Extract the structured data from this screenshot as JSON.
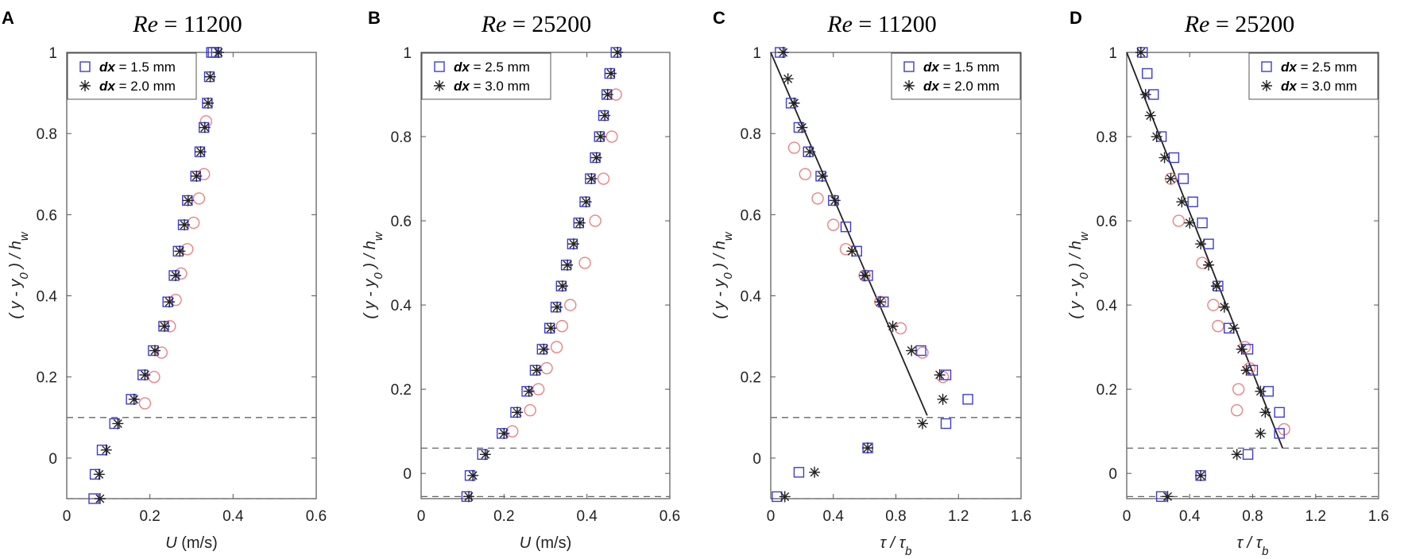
{
  "figure": {
    "panels": [
      "A",
      "B",
      "C",
      "D"
    ]
  },
  "colors": {
    "series1": "#3b3bdc",
    "series2": "#222222",
    "series3": "#f08080",
    "fit_line": "#222222",
    "reference": "#666666"
  },
  "chart_data": [
    {
      "panel": "A",
      "type": "scatter",
      "title_var": "Re",
      "title_value": "= 11200",
      "xlabel_var": "U",
      "xlabel_unit": "(m/s)",
      "ylabel": "( y - y0 ) / hw",
      "xlim": [
        0,
        0.6
      ],
      "ylim": [
        -0.1,
        1.0
      ],
      "xticks": [
        "0",
        "0.2",
        "0.4",
        "0.6"
      ],
      "xtick_values": [
        0,
        0.2,
        0.4,
        0.6
      ],
      "yticks": [
        "0",
        "0.2",
        "0.4",
        "0.6",
        "0.8",
        "1"
      ],
      "ytick_values": [
        0,
        0.2,
        0.4,
        0.6,
        0.8,
        1
      ],
      "legend_position": "top-left",
      "reference_lines": [
        0.1,
        -0.1
      ],
      "series": [
        {
          "name": "dx = 1.5 mm",
          "var": "dx",
          "label": "= 1.5 mm",
          "marker": "square",
          "x": [
            0.065,
            0.068,
            0.085,
            0.115,
            0.155,
            0.183,
            0.208,
            0.233,
            0.243,
            0.258,
            0.268,
            0.28,
            0.29,
            0.31,
            0.32,
            0.33,
            0.338,
            0.343,
            0.348,
            0.352,
            0.36
          ],
          "y": [
            -0.1,
            -0.04,
            0.02,
            0.085,
            0.145,
            0.205,
            0.265,
            0.325,
            0.385,
            0.45,
            0.51,
            0.575,
            0.635,
            0.695,
            0.755,
            0.815,
            0.875,
            0.94,
            1.0,
            1.0,
            1.0
          ]
        },
        {
          "name": "dx = 2.0 mm",
          "var": "dx",
          "label": "= 2.0 mm",
          "marker": "asterisk",
          "x": [
            0.08,
            0.078,
            0.095,
            0.123,
            0.162,
            0.188,
            0.212,
            0.235,
            0.247,
            0.262,
            0.272,
            0.283,
            0.292,
            0.312,
            0.322,
            0.332,
            0.34,
            0.345,
            0.365
          ],
          "y": [
            -0.1,
            -0.04,
            0.02,
            0.085,
            0.145,
            0.205,
            0.265,
            0.325,
            0.385,
            0.45,
            0.51,
            0.575,
            0.635,
            0.695,
            0.755,
            0.815,
            0.875,
            0.94,
            1.0
          ]
        },
        {
          "name": "open-circle series",
          "marker": "circle",
          "x": [
            0.188,
            0.21,
            0.228,
            0.248,
            0.262,
            0.275,
            0.29,
            0.305,
            0.318,
            0.33,
            0.335
          ],
          "y": [
            0.135,
            0.2,
            0.26,
            0.325,
            0.39,
            0.455,
            0.515,
            0.58,
            0.64,
            0.7,
            0.83
          ]
        }
      ]
    },
    {
      "panel": "B",
      "type": "scatter",
      "title_var": "Re",
      "title_value": "= 25200",
      "xlabel_var": "U",
      "xlabel_unit": "(m/s)",
      "ylabel": "( y - y0 ) / hw",
      "xlim": [
        0,
        0.6
      ],
      "ylim": [
        -0.06,
        1.0
      ],
      "xticks": [
        "0",
        "0.2",
        "0.4",
        "0.6"
      ],
      "xtick_values": [
        0,
        0.2,
        0.4,
        0.6
      ],
      "yticks": [
        "0",
        "0.2",
        "0.4",
        "0.6",
        "0.8",
        "1"
      ],
      "ytick_values": [
        0,
        0.2,
        0.4,
        0.6,
        0.8,
        1
      ],
      "legend_position": "top-left",
      "reference_lines": [
        0.06,
        -0.055
      ],
      "series": [
        {
          "name": "dx = 2.5 mm",
          "var": "dx",
          "label": "= 2.5 mm",
          "marker": "square",
          "x": [
            0.11,
            0.118,
            0.148,
            0.195,
            0.228,
            0.255,
            0.275,
            0.292,
            0.31,
            0.325,
            0.338,
            0.35,
            0.365,
            0.38,
            0.395,
            0.408,
            0.42,
            0.43,
            0.44,
            0.448,
            0.455,
            0.47
          ],
          "y": [
            -0.055,
            -0.005,
            0.045,
            0.095,
            0.145,
            0.195,
            0.245,
            0.295,
            0.345,
            0.395,
            0.445,
            0.495,
            0.545,
            0.595,
            0.645,
            0.7,
            0.75,
            0.8,
            0.85,
            0.9,
            0.95,
            1.0
          ]
        },
        {
          "name": "dx = 3.0 mm",
          "var": "dx",
          "label": "= 3.0 mm",
          "marker": "asterisk",
          "x": [
            0.115,
            0.125,
            0.155,
            0.2,
            0.232,
            0.26,
            0.279,
            0.296,
            0.313,
            0.328,
            0.341,
            0.353,
            0.368,
            0.383,
            0.398,
            0.411,
            0.423,
            0.433,
            0.443,
            0.45,
            0.458,
            0.474
          ],
          "y": [
            -0.055,
            -0.005,
            0.045,
            0.095,
            0.145,
            0.195,
            0.245,
            0.295,
            0.345,
            0.395,
            0.445,
            0.495,
            0.545,
            0.595,
            0.645,
            0.7,
            0.75,
            0.8,
            0.85,
            0.9,
            0.95,
            1.0
          ]
        },
        {
          "name": "open-circle series",
          "marker": "circle",
          "x": [
            0.22,
            0.263,
            0.283,
            0.303,
            0.327,
            0.34,
            0.36,
            0.395,
            0.42,
            0.44,
            0.46,
            0.47
          ],
          "y": [
            0.1,
            0.15,
            0.2,
            0.25,
            0.3,
            0.35,
            0.4,
            0.5,
            0.6,
            0.7,
            0.8,
            0.9
          ]
        }
      ]
    },
    {
      "panel": "C",
      "type": "scatter",
      "title_var": "Re",
      "title_value": "= 11200",
      "xlabel_var": "τ / τb",
      "xlabel_unit": "",
      "ylabel": "( y - y0 ) / hw",
      "xlim": [
        0,
        1.6
      ],
      "ylim": [
        -0.1,
        1.0
      ],
      "xticks": [
        "0",
        "0.4",
        "0.8",
        "1.2",
        "1.6"
      ],
      "xtick_values": [
        0,
        0.4,
        0.8,
        1.2,
        1.6
      ],
      "yticks": [
        "0",
        "0.2",
        "0.4",
        "0.6",
        "0.8",
        "1"
      ],
      "ytick_values": [
        0,
        0.2,
        0.4,
        0.6,
        0.8,
        1
      ],
      "legend_position": "top-right",
      "reference_lines": [
        0.1,
        -0.1
      ],
      "fit_line": {
        "x": [
          0.0,
          1.0
        ],
        "y": [
          1.0,
          0.105
        ]
      },
      "series": [
        {
          "name": "dx = 1.5 mm",
          "var": "dx",
          "label": "= 1.5 mm",
          "marker": "square",
          "x": [
            0.04,
            0.18,
            0.62,
            1.12,
            1.26,
            1.12,
            0.96,
            0.72,
            0.62,
            0.55,
            0.48,
            0.4,
            0.32,
            0.24,
            0.18,
            0.13,
            0.06
          ],
          "y": [
            -0.095,
            -0.035,
            0.025,
            0.085,
            0.145,
            0.205,
            0.265,
            0.385,
            0.45,
            0.51,
            0.57,
            0.635,
            0.695,
            0.755,
            0.815,
            0.875,
            1.0
          ]
        },
        {
          "name": "dx = 2.0 mm",
          "var": "dx",
          "label": "= 2.0 mm",
          "marker": "asterisk",
          "x": [
            0.09,
            0.28,
            0.62,
            0.97,
            1.1,
            1.08,
            0.9,
            0.78,
            0.7,
            0.6,
            0.52,
            0.41,
            0.33,
            0.25,
            0.2,
            0.15,
            0.11,
            0.08
          ],
          "y": [
            -0.095,
            -0.035,
            0.025,
            0.085,
            0.145,
            0.205,
            0.265,
            0.325,
            0.385,
            0.45,
            0.51,
            0.635,
            0.695,
            0.755,
            0.815,
            0.875,
            0.935,
            1.0
          ]
        },
        {
          "name": "open-circle series",
          "marker": "circle",
          "x": [
            1.1,
            0.97,
            0.83,
            0.7,
            0.6,
            0.48,
            0.4,
            0.3,
            0.22,
            0.15
          ],
          "y": [
            0.2,
            0.26,
            0.32,
            0.385,
            0.45,
            0.515,
            0.575,
            0.64,
            0.7,
            0.765
          ]
        }
      ]
    },
    {
      "panel": "D",
      "type": "scatter",
      "title_var": "Re",
      "title_value": "= 25200",
      "xlabel_var": "τ / τb",
      "xlabel_unit": "",
      "ylabel": "( y - y0 ) / hw",
      "xlim": [
        0,
        1.6
      ],
      "ylim": [
        -0.06,
        1.0
      ],
      "xticks": [
        "0",
        "0.4",
        "0.8",
        "1.2",
        "1.6"
      ],
      "xtick_values": [
        0,
        0.4,
        0.8,
        1.2,
        1.6
      ],
      "yticks": [
        "0",
        "0.2",
        "0.4",
        "0.6",
        "0.8",
        "1"
      ],
      "ytick_values": [
        0,
        0.2,
        0.4,
        0.6,
        0.8,
        1
      ],
      "legend_position": "top-right",
      "reference_lines": [
        0.06,
        -0.055
      ],
      "fit_line": {
        "x": [
          0.0,
          0.99
        ],
        "y": [
          1.0,
          0.06
        ]
      },
      "series": [
        {
          "name": "dx = 2.5 mm",
          "var": "dx",
          "label": "= 2.5 mm",
          "marker": "square",
          "x": [
            0.22,
            0.47,
            0.77,
            0.97,
            0.97,
            0.9,
            0.8,
            0.77,
            0.65,
            0.58,
            0.52,
            0.48,
            0.42,
            0.36,
            0.3,
            0.22,
            0.17,
            0.13,
            0.1
          ],
          "y": [
            -0.055,
            -0.005,
            0.045,
            0.095,
            0.145,
            0.195,
            0.245,
            0.295,
            0.345,
            0.445,
            0.545,
            0.595,
            0.645,
            0.7,
            0.75,
            0.8,
            0.9,
            0.95,
            1.0
          ]
        },
        {
          "name": "dx = 3.0 mm",
          "var": "dx",
          "label": "= 3.0 mm",
          "marker": "asterisk",
          "x": [
            0.26,
            0.47,
            0.7,
            0.85,
            0.88,
            0.85,
            0.76,
            0.73,
            0.68,
            0.62,
            0.57,
            0.52,
            0.47,
            0.4,
            0.35,
            0.28,
            0.24,
            0.19,
            0.15,
            0.12,
            0.09
          ],
          "y": [
            -0.055,
            -0.005,
            0.045,
            0.095,
            0.145,
            0.195,
            0.245,
            0.295,
            0.345,
            0.395,
            0.445,
            0.495,
            0.545,
            0.595,
            0.645,
            0.7,
            0.75,
            0.8,
            0.85,
            0.9,
            1.0
          ]
        },
        {
          "name": "open-circle series",
          "marker": "circle",
          "x": [
            1.0,
            0.7,
            0.71,
            0.78,
            0.75,
            0.58,
            0.55,
            0.48,
            0.33,
            0.28
          ],
          "y": [
            0.105,
            0.15,
            0.2,
            0.25,
            0.3,
            0.35,
            0.4,
            0.5,
            0.6,
            0.7
          ]
        }
      ]
    }
  ]
}
